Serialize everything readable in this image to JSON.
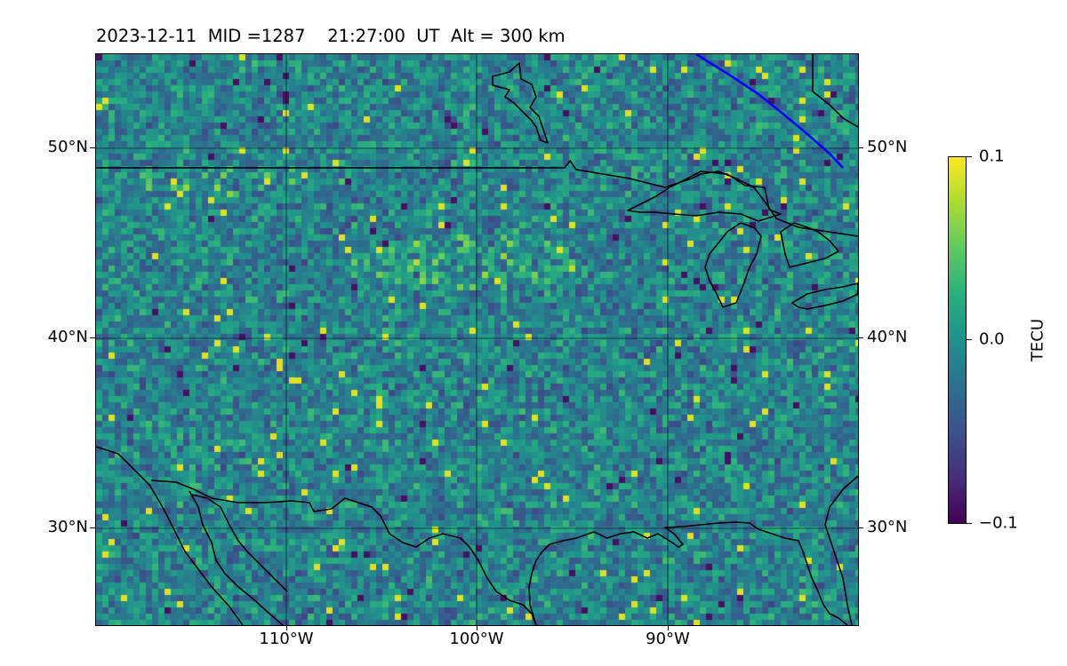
{
  "title": "2023-12-11  MID =1287    21:27:00  UT  Alt = 300 km",
  "map": {
    "lon_range": [
      -115,
      -95
    ],
    "lat_range": [
      25,
      55
    ],
    "projection": "equirectangular",
    "gridlines": true,
    "lat_ticks": [
      {
        "value": 50,
        "label": "50°N"
      },
      {
        "value": 40,
        "label": "40°N"
      },
      {
        "value": 30,
        "label": "30°N"
      }
    ],
    "lon_ticks": [
      {
        "value": -110,
        "label": "110°W"
      },
      {
        "value": -100,
        "label": "100°W"
      },
      {
        "value": -90,
        "label": "90°W"
      }
    ],
    "colormap": "viridis",
    "field_description": "differential TEC perturbation map",
    "magnetic_line_color": "#0000ff",
    "coastline_color": "#000000"
  },
  "colorbar": {
    "label": "TECU",
    "min": -0.1,
    "max": 0.1,
    "ticks": [
      {
        "value": 0.1,
        "label": "0.1"
      },
      {
        "value": 0.0,
        "label": "0.0"
      },
      {
        "value": -0.1,
        "label": "−0.1"
      }
    ]
  }
}
